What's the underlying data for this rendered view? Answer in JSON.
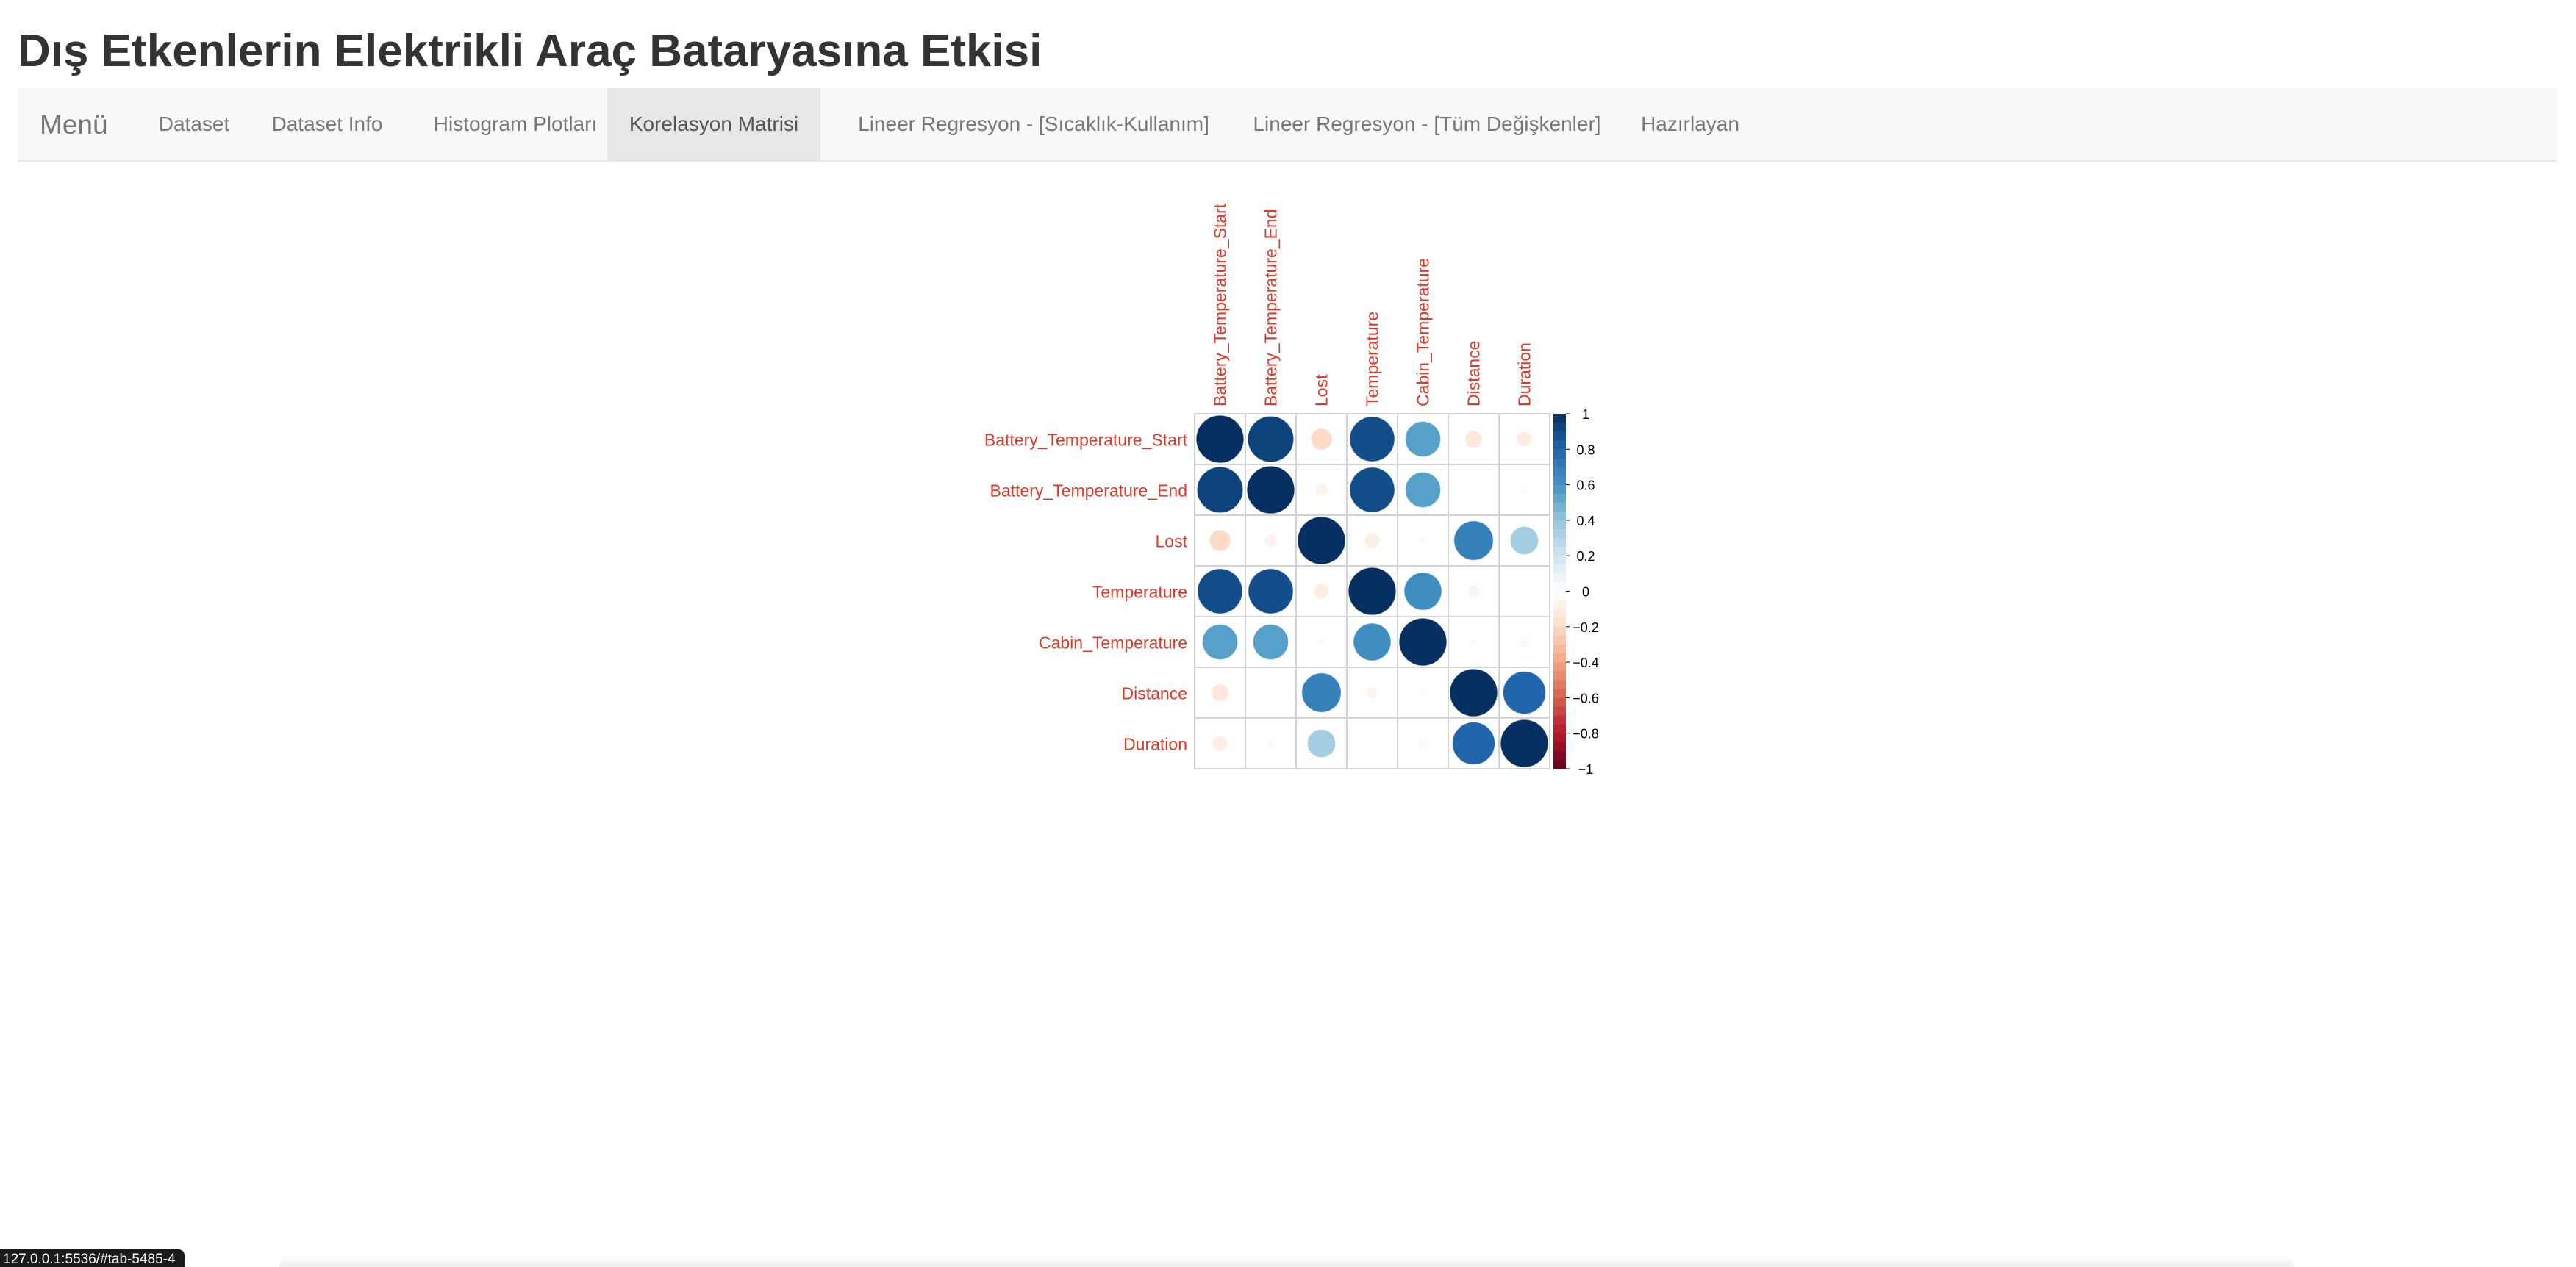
{
  "app": {
    "title": "Dış Etkenlerin Elektrikli Araç Bataryasına Etkisi"
  },
  "navbar": {
    "brand": "Menü",
    "tabs": [
      {
        "label": "Dataset",
        "active": false
      },
      {
        "label": "Dataset Info",
        "active": false
      },
      {
        "label": "Histogram Plotları",
        "active": false
      },
      {
        "label": "Korelasyon Matrisi",
        "active": true
      },
      {
        "label": "Lineer Regresyon - [Sıcaklık-Kullanım]",
        "active": false
      },
      {
        "label": "Lineer Regresyon - [Tüm Değişkenler]",
        "active": false
      },
      {
        "label": "Hazırlayan",
        "active": false
      }
    ]
  },
  "status_bar": {
    "url": "127.0.0.1:5536/#tab-5485-4"
  },
  "chart_data": {
    "type": "heatmap",
    "style": "corrplot-circle",
    "variables": [
      "Battery_Temperature_Start",
      "Battery_Temperature_End",
      "Lost",
      "Temperature",
      "Cabin_Temperature",
      "Distance",
      "Duration"
    ],
    "matrix": [
      [
        1.0,
        0.93,
        -0.2,
        0.89,
        0.55,
        -0.13,
        -0.1
      ],
      [
        0.93,
        1.0,
        -0.07,
        0.89,
        0.55,
        0.0,
        0.03
      ],
      [
        -0.2,
        -0.07,
        1.0,
        -0.1,
        0.03,
        0.68,
        0.35
      ],
      [
        0.89,
        0.89,
        -0.1,
        1.0,
        0.62,
        -0.06,
        0.01
      ],
      [
        0.55,
        0.55,
        0.03,
        0.62,
        1.0,
        0.03,
        -0.04
      ],
      [
        -0.13,
        0.0,
        0.68,
        -0.06,
        0.03,
        1.0,
        0.8
      ],
      [
        -0.1,
        0.03,
        0.35,
        0.01,
        -0.04,
        0.8,
        1.0
      ]
    ],
    "colorbar_ticks": [
      "1",
      "0.8",
      "0.6",
      "0.4",
      "0.2",
      "0",
      "−0.2",
      "−0.4",
      "−0.6",
      "−0.8",
      "−1"
    ],
    "colorbar_range": [
      -1,
      1
    ],
    "label_color": "#e0392b",
    "positive_color": "#053061",
    "negative_color": "#67001f",
    "grid": true
  }
}
